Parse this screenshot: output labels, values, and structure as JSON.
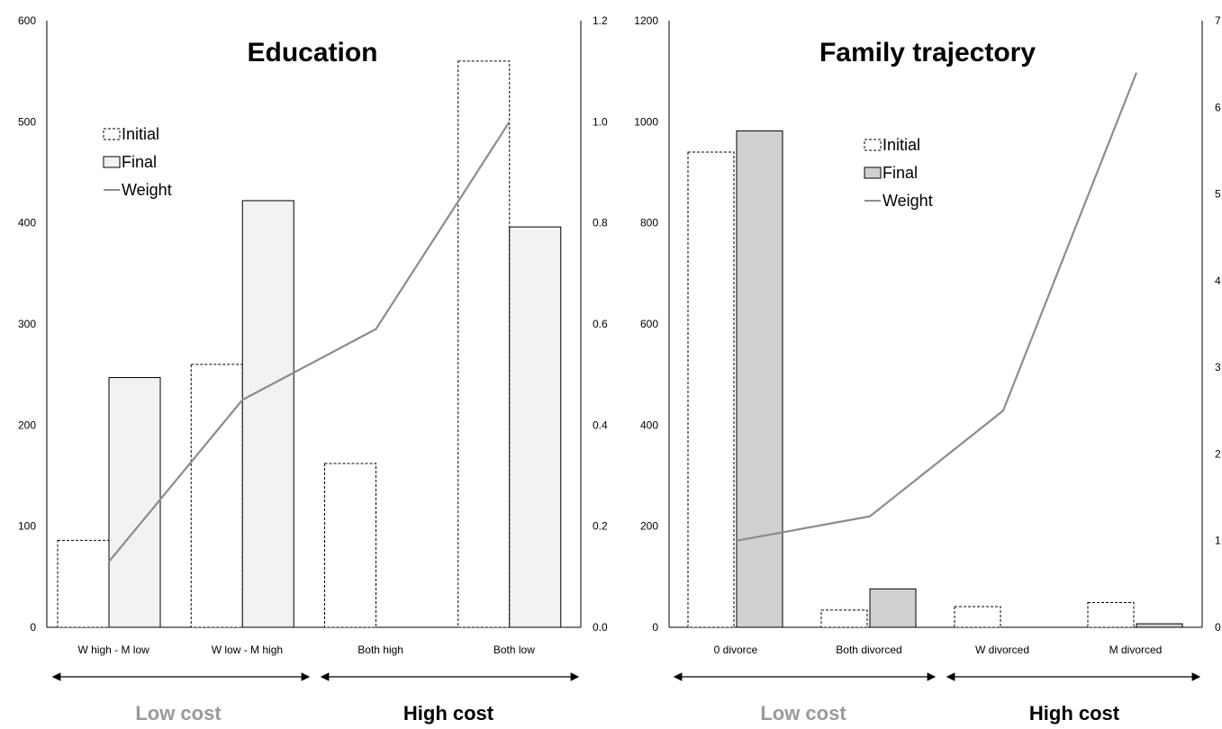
{
  "chart_data": [
    {
      "type": "bar",
      "title": "Education",
      "categories": [
        "W high - M low",
        "W low - M high",
        "Both high",
        "Both low"
      ],
      "series": [
        {
          "name": "Initial",
          "kind": "bar",
          "style": "dashed-outline",
          "values": [
            86,
            260,
            162,
            560
          ]
        },
        {
          "name": "Final",
          "kind": "bar",
          "style": "light-gray-fill",
          "fill": "#f2f2f2",
          "values": [
            247,
            422,
            0,
            396
          ]
        },
        {
          "name": "Weight",
          "kind": "line",
          "axis": "right",
          "color": "#8c8c8c",
          "values": [
            0.13,
            0.45,
            0.59,
            1.0
          ]
        }
      ],
      "left_axis": {
        "min": 0,
        "max": 600,
        "ticks": [
          "0",
          "100",
          "200",
          "300",
          "400",
          "500",
          "600"
        ]
      },
      "right_axis": {
        "min": 0,
        "max": 1.2,
        "ticks": [
          "0.0",
          "0.2",
          "0.4",
          "0.6",
          "0.8",
          "1.0",
          "1.2"
        ]
      },
      "groups": [
        {
          "label": "Low cost",
          "color": "#9a9a9a"
        },
        {
          "label": "High cost",
          "color": "#000000"
        }
      ],
      "legend": [
        "Initial",
        "Final",
        "Weight"
      ],
      "legend_position": "top-left"
    },
    {
      "type": "bar",
      "title": "Family trajectory",
      "categories": [
        "0 divorce",
        "Both divorced",
        "W divorced",
        "M divorced"
      ],
      "series": [
        {
          "name": "Initial",
          "kind": "bar",
          "style": "dashed-outline",
          "values": [
            940,
            34,
            41,
            49
          ]
        },
        {
          "name": "Final",
          "kind": "bar",
          "style": "gray-fill",
          "fill": "#d0d0d0",
          "values": [
            982,
            76,
            0,
            7
          ]
        },
        {
          "name": "Weight",
          "kind": "line",
          "axis": "right",
          "color": "#8c8c8c",
          "values": [
            1.0,
            1.28,
            2.5,
            6.4
          ]
        }
      ],
      "left_axis": {
        "min": 0,
        "max": 1200,
        "ticks": [
          "0",
          "200",
          "400",
          "600",
          "800",
          "1000",
          "1200"
        ]
      },
      "right_axis": {
        "min": 0,
        "max": 7,
        "ticks": [
          "0",
          "1",
          "2",
          "3",
          "4",
          "5",
          "6",
          "7"
        ]
      },
      "groups": [
        {
          "label": "Low cost",
          "color": "#9a9a9a"
        },
        {
          "label": "High cost",
          "color": "#000000"
        }
      ],
      "legend": [
        "Initial",
        "Final",
        "Weight"
      ],
      "legend_position": "top-center"
    }
  ]
}
